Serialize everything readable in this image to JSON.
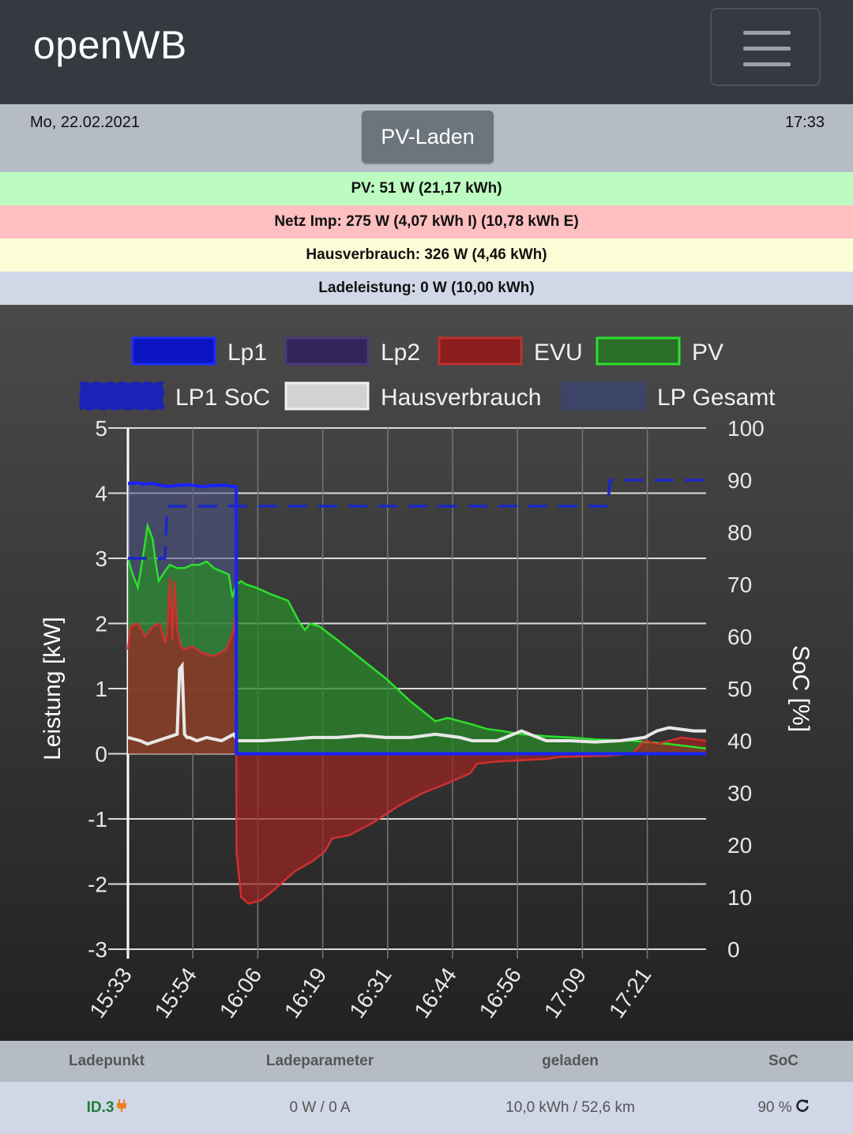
{
  "app": {
    "brand": "openWB"
  },
  "status": {
    "date": "Mo, 22.02.2021",
    "time": "17:33",
    "mode": "PV-Laden"
  },
  "info_rows": {
    "pv": {
      "text": "PV: 51 W (21,17 kWh)",
      "color": "#bdfcc0"
    },
    "netz": {
      "text": "Netz Imp: 275 W (4,07 kWh I) (10,78 kWh E)",
      "color": "#fdbfc0"
    },
    "haus": {
      "text": "Hausverbrauch: 326 W (4,46 kWh)",
      "color": "#fcfcd6"
    },
    "lade": {
      "text": "Ladeleistung: 0 W (10,00 kWh)",
      "color": "#d0d7e7"
    }
  },
  "chart_data": {
    "type": "area",
    "ylabel": "Leistung [kW]",
    "y2label": "SoC [%]",
    "ylim": [
      -3,
      5
    ],
    "y2lim": [
      0,
      100
    ],
    "yticks": [
      "5",
      "4",
      "3",
      "2",
      "1",
      "0",
      "-1",
      "-2",
      "-3"
    ],
    "y2ticks": [
      "100",
      "90",
      "80",
      "70",
      "60",
      "50",
      "40",
      "30",
      "20",
      "10",
      "0"
    ],
    "xticks": [
      "15:33",
      "15:54",
      "16:06",
      "16:19",
      "16:31",
      "16:44",
      "16:56",
      "17:09",
      "17:21"
    ],
    "legend": [
      {
        "name": "Lp1",
        "fill": "#0a14c0",
        "stroke": "#1a2cff"
      },
      {
        "name": "Lp2",
        "fill": "#33245a",
        "stroke": "#483a78"
      },
      {
        "name": "EVU",
        "fill": "#8a1e1e",
        "stroke": "#c03030"
      },
      {
        "name": "PV",
        "fill": "#2a6e2a",
        "stroke": "#2be02b"
      },
      {
        "name": "LP1 SoC",
        "fill": "#1a22b8",
        "stroke": "#1a22b8",
        "dashed": true
      },
      {
        "name": "Hausverbrauch",
        "fill": "#d2d2d2",
        "stroke": "#f0f0f0"
      },
      {
        "name": "LP Gesamt",
        "fill": "#3c4468",
        "stroke": "#3c4468"
      }
    ],
    "series": [
      {
        "name": "Lp1",
        "color": "#1a22ff",
        "x": [
          0,
          0.2,
          0.4,
          0.6,
          1.0,
          1.6,
          2.0,
          2.5,
          3.0,
          3.5,
          4.0,
          4.3,
          4.4,
          4.41,
          23.5
        ],
        "values": [
          4.15,
          4.15,
          4.16,
          4.14,
          4.15,
          4.1,
          4.12,
          4.13,
          4.1,
          4.12,
          4.12,
          4.1,
          4.1,
          0,
          0
        ]
      },
      {
        "name": "PV",
        "color": "#2be02b",
        "x": [
          0,
          0.15,
          0.4,
          0.6,
          0.8,
          1.0,
          1.1,
          1.25,
          1.5,
          1.7,
          2.0,
          2.3,
          2.6,
          2.9,
          3.2,
          3.5,
          3.8,
          4.1,
          4.25,
          4.4,
          4.6,
          4.8,
          5.2,
          5.8,
          6.5,
          7.0,
          7.2,
          7.4,
          7.8,
          8.5,
          9.5,
          10.5,
          11.5,
          12.5,
          13.0,
          13.5,
          14.0,
          14.6,
          15.2,
          16.0,
          17.0,
          18.0,
          19.0,
          20.5,
          22.0,
          23.5
        ],
        "values": [
          3.0,
          2.8,
          2.55,
          3.0,
          3.5,
          3.3,
          3.0,
          2.65,
          2.8,
          2.9,
          2.85,
          2.85,
          2.9,
          2.9,
          2.95,
          2.85,
          2.8,
          2.75,
          2.4,
          2.6,
          2.65,
          2.6,
          2.55,
          2.45,
          2.35,
          2.0,
          1.9,
          2.0,
          1.95,
          1.75,
          1.45,
          1.15,
          0.8,
          0.5,
          0.55,
          0.5,
          0.45,
          0.38,
          0.35,
          0.3,
          0.27,
          0.25,
          0.22,
          0.2,
          0.15,
          0.08
        ]
      },
      {
        "name": "EVU",
        "color": "#c03030",
        "x": [
          0,
          0.1,
          0.4,
          0.7,
          1.0,
          1.3,
          1.5,
          1.6,
          1.7,
          1.8,
          1.9,
          2.0,
          2.15,
          2.3,
          2.6,
          3.0,
          3.5,
          4.0,
          4.3,
          4.4,
          4.41,
          4.6,
          4.9,
          5.4,
          5.9,
          6.2,
          6.8,
          7.5,
          8.0,
          8.3,
          9.0,
          10.0,
          11.0,
          12.0,
          13.0,
          13.9,
          14.2,
          15.0,
          16.0,
          17.0,
          17.5,
          18.5,
          19.5,
          20.5,
          21.0,
          21.5,
          22.5,
          23.5
        ],
        "values": [
          1.6,
          1.95,
          2.0,
          1.8,
          1.95,
          2.0,
          1.7,
          1.85,
          2.7,
          1.75,
          2.65,
          1.9,
          1.65,
          1.6,
          1.65,
          1.55,
          1.5,
          1.6,
          1.9,
          2.3,
          -1.5,
          -2.2,
          -2.3,
          -2.25,
          -2.1,
          -2.0,
          -1.8,
          -1.65,
          -1.5,
          -1.3,
          -1.25,
          -1.05,
          -0.8,
          -0.6,
          -0.45,
          -0.3,
          -0.15,
          -0.12,
          -0.1,
          -0.08,
          -0.05,
          -0.04,
          -0.03,
          0.0,
          0.2,
          0.15,
          0.25,
          0.2
        ]
      },
      {
        "name": "Hausverbrauch",
        "color": "#e8e8e8",
        "x": [
          0,
          0.5,
          0.8,
          1.2,
          1.6,
          2.0,
          2.1,
          2.2,
          2.3,
          2.4,
          2.5,
          2.8,
          3.2,
          3.8,
          4.3,
          4.45,
          5.5,
          6.5,
          7.5,
          8.5,
          9.5,
          10.5,
          11.5,
          12.5,
          13.5,
          14.0,
          15.0,
          16.0,
          17.0,
          18.0,
          19.0,
          20.0,
          21.0,
          21.5,
          22.0,
          23.0,
          23.5
        ],
        "values": [
          0.25,
          0.2,
          0.15,
          0.2,
          0.25,
          0.3,
          1.3,
          1.35,
          0.3,
          0.25,
          0.25,
          0.2,
          0.25,
          0.2,
          0.3,
          0.2,
          0.2,
          0.22,
          0.25,
          0.25,
          0.28,
          0.25,
          0.25,
          0.3,
          0.25,
          0.2,
          0.2,
          0.35,
          0.2,
          0.2,
          0.18,
          0.2,
          0.25,
          0.35,
          0.4,
          0.35,
          0.35
        ]
      },
      {
        "name": "LP1 SoC",
        "color": "#1a22b8",
        "axis": "right",
        "x": [
          0,
          1.5,
          1.6,
          19.5,
          19.6,
          23.5
        ],
        "values": [
          75,
          75,
          85,
          85,
          90,
          90
        ]
      }
    ]
  },
  "table": {
    "headers": [
      "Ladepunkt",
      "Ladeparameter",
      "geladen",
      "SoC"
    ],
    "row": {
      "name": "ID.3",
      "params": "0 W / 0 A",
      "geladen": "10,0 kWh / 52,6 km",
      "soc": "90 %"
    }
  }
}
